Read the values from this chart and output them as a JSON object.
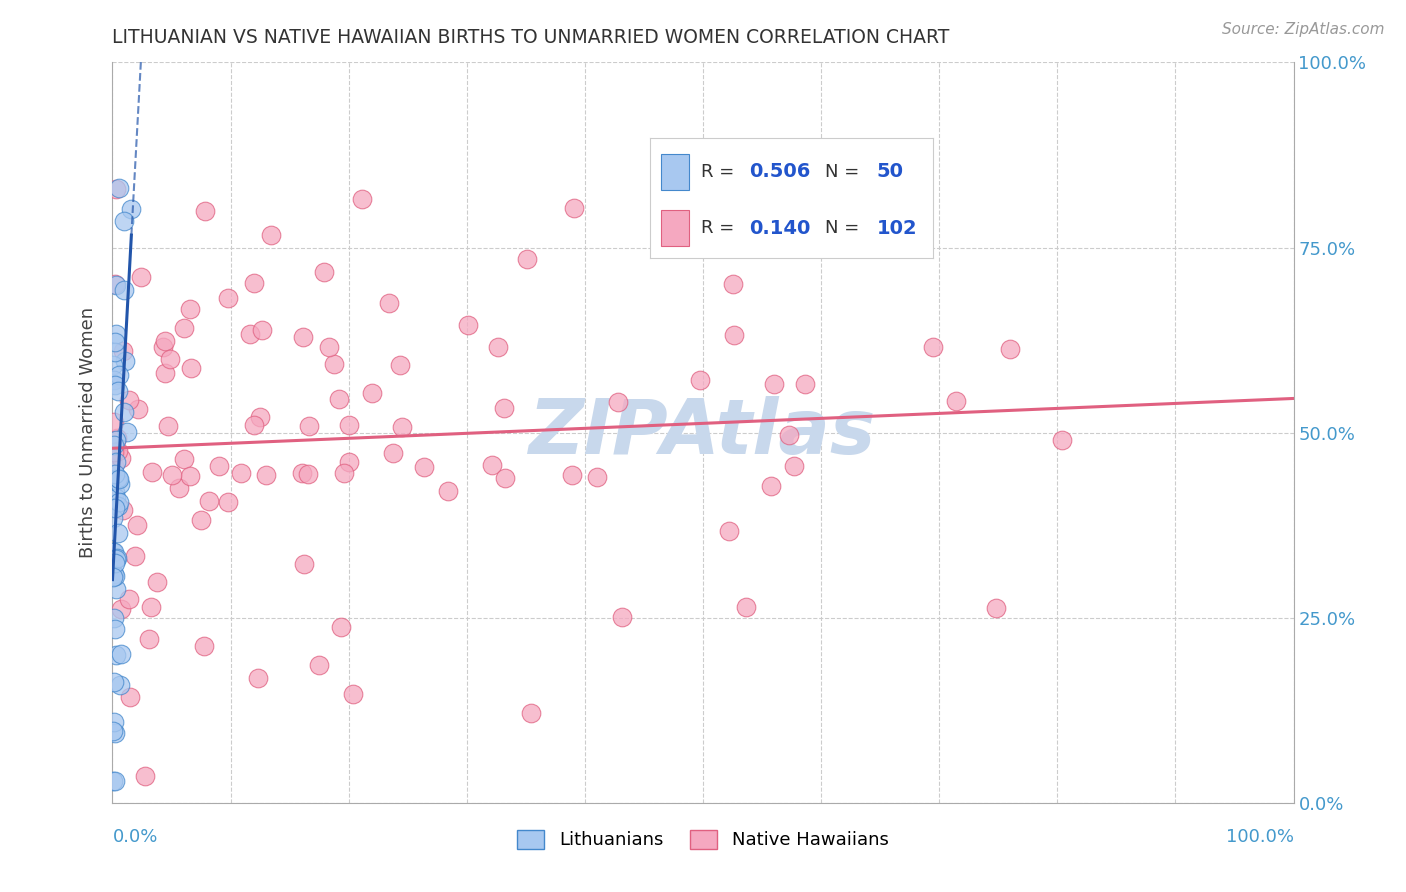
{
  "title": "LITHUANIAN VS NATIVE HAWAIIAN BIRTHS TO UNMARRIED WOMEN CORRELATION CHART",
  "source": "Source: ZipAtlas.com",
  "ylabel": "Births to Unmarried Women",
  "xlim": [
    0.0,
    1.0
  ],
  "ylim": [
    0.0,
    1.0
  ],
  "blue_color": "#A8C8F0",
  "pink_color": "#F5A8C0",
  "blue_edge_color": "#4488CC",
  "pink_edge_color": "#E06080",
  "blue_line_color": "#2255AA",
  "pink_line_color": "#E06080",
  "watermark_color": "#C8D8EC",
  "legend_R_blue": "0.506",
  "legend_N_blue": "50",
  "legend_R_pink": "0.140",
  "legend_N_pink": "102",
  "legend_value_color": "#2255CC",
  "right_tick_color": "#4499CC",
  "grid_color": "#CCCCCC",
  "title_color": "#333333",
  "ylabel_color": "#444444",
  "source_color": "#999999"
}
